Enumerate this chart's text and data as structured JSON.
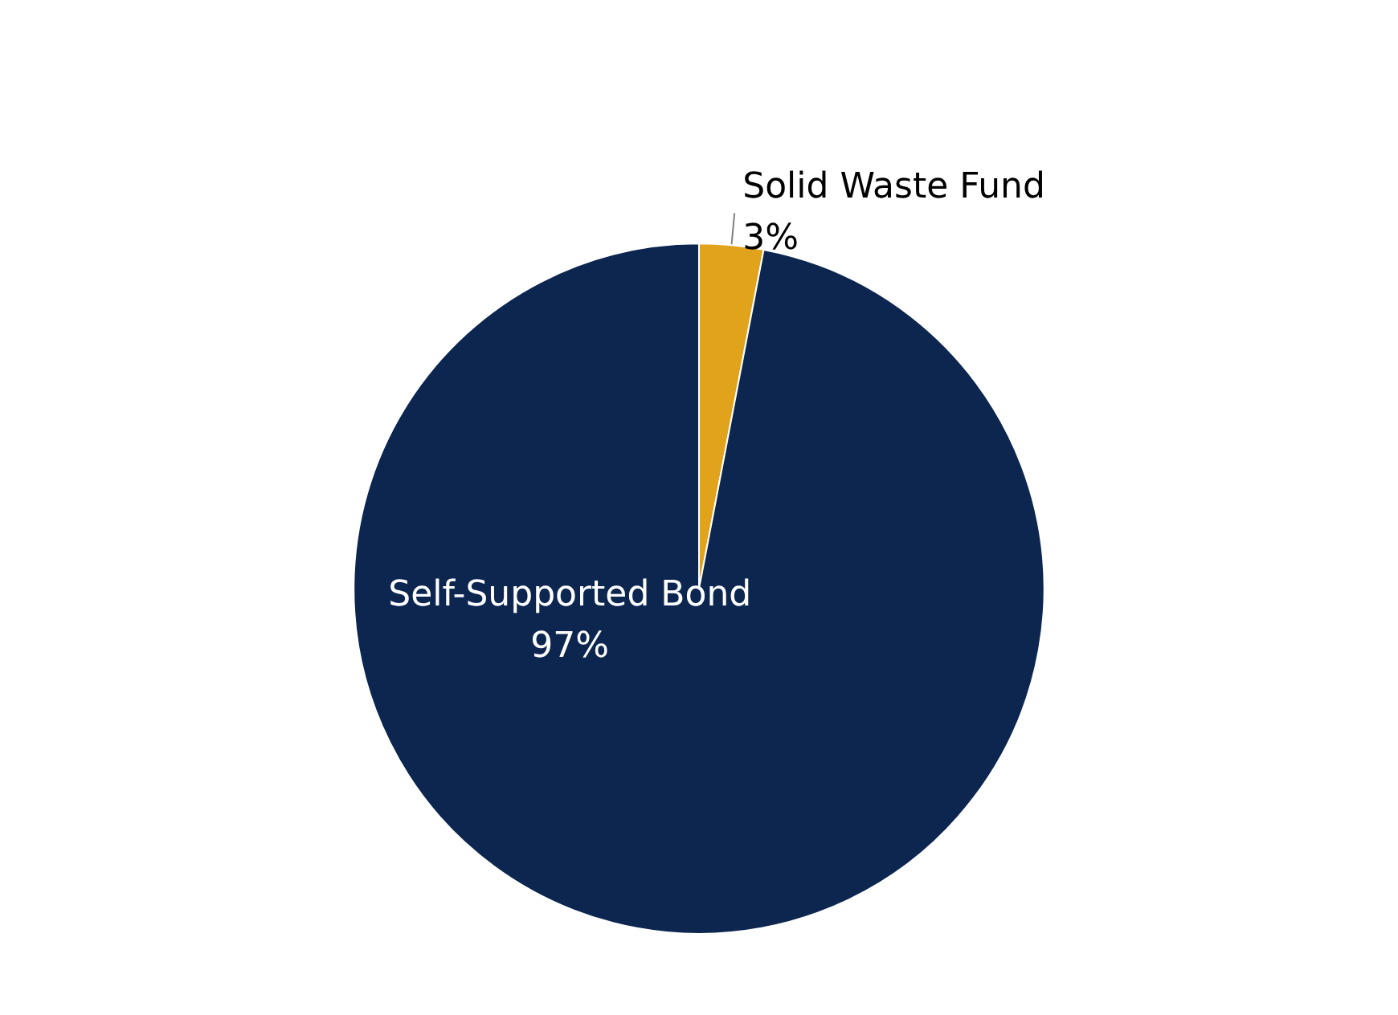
{
  "chart_data": {
    "type": "pie",
    "categories": [
      "Solid Waste Fund",
      "Self-Supported Bond"
    ],
    "values": [
      3,
      97
    ],
    "value_labels": [
      "3%",
      "97%"
    ],
    "colors": [
      "#e1a31b",
      "#0c2650"
    ],
    "legend": false
  }
}
